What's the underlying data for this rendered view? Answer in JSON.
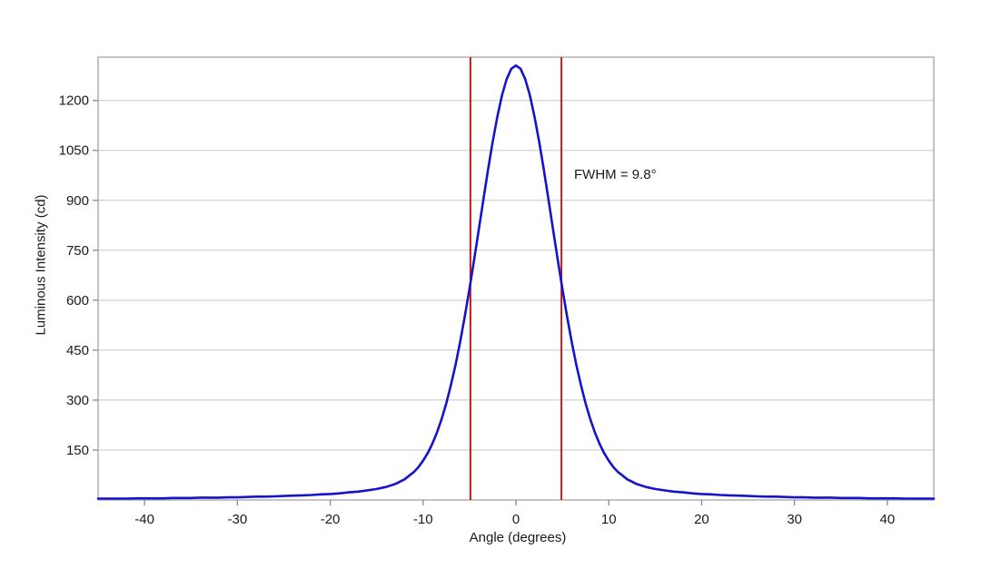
{
  "figure": {
    "background": "#ffffff",
    "frame_color": "#aaaaaa",
    "gridline_color": "#c8c8c8",
    "tick_color": "#888888",
    "text_color": "#1a1a1a"
  },
  "chart_data": {
    "type": "line",
    "title": "",
    "xlabel": "Angle (degrees)",
    "ylabel": "Luminous Intensity (cd)",
    "xlim": [
      -45,
      45
    ],
    "ylim": [
      0,
      1330
    ],
    "x_ticks": [
      -40,
      -30,
      -20,
      -10,
      0,
      10,
      20,
      30,
      40
    ],
    "y_ticks": [
      150,
      300,
      450,
      600,
      750,
      900,
      1050,
      1200
    ],
    "grid": "horizontal",
    "legend": "none",
    "annotations": [
      {
        "text": "FWHM = 9.8°",
        "x": 6.3,
        "y": 975
      }
    ],
    "markers": {
      "type": "vline",
      "x": [
        -4.9,
        4.9
      ],
      "color": "#e00000",
      "meaning": "FWHM half-maximum bounds"
    },
    "fwhm_degrees": 9.8,
    "peak_cd": 1305,
    "series": [
      {
        "name": "Luminous intensity",
        "color": "#1414cc",
        "points": [
          [
            -45,
            4
          ],
          [
            -44,
            4
          ],
          [
            -43,
            4
          ],
          [
            -42,
            4
          ],
          [
            -41,
            5
          ],
          [
            -40,
            5
          ],
          [
            -39,
            5
          ],
          [
            -38,
            5
          ],
          [
            -37,
            6
          ],
          [
            -36,
            6
          ],
          [
            -35,
            6
          ],
          [
            -34,
            7
          ],
          [
            -33,
            7
          ],
          [
            -32,
            7
          ],
          [
            -31,
            8
          ],
          [
            -30,
            8
          ],
          [
            -29,
            9
          ],
          [
            -28,
            10
          ],
          [
            -27,
            10
          ],
          [
            -26,
            11
          ],
          [
            -25,
            12
          ],
          [
            -24,
            13
          ],
          [
            -23,
            14
          ],
          [
            -22,
            15
          ],
          [
            -21,
            17
          ],
          [
            -20,
            18
          ],
          [
            -19,
            20
          ],
          [
            -18,
            23
          ],
          [
            -17,
            25
          ],
          [
            -16,
            29
          ],
          [
            -15,
            33
          ],
          [
            -14,
            39
          ],
          [
            -13,
            48
          ],
          [
            -12,
            62
          ],
          [
            -11,
            84
          ],
          [
            -10.5,
            99
          ],
          [
            -10,
            118
          ],
          [
            -9.5,
            141
          ],
          [
            -9,
            169
          ],
          [
            -8.5,
            203
          ],
          [
            -8,
            243
          ],
          [
            -7.5,
            290
          ],
          [
            -7,
            345
          ],
          [
            -6.5,
            407
          ],
          [
            -6,
            476
          ],
          [
            -5.5,
            553
          ],
          [
            -5,
            635
          ],
          [
            -4.5,
            722
          ],
          [
            -4,
            812
          ],
          [
            -3.5,
            903
          ],
          [
            -3,
            992
          ],
          [
            -2.5,
            1076
          ],
          [
            -2,
            1152
          ],
          [
            -1.5,
            1216
          ],
          [
            -1,
            1264
          ],
          [
            -0.5,
            1295
          ],
          [
            0,
            1305
          ],
          [
            0.5,
            1295
          ],
          [
            1,
            1264
          ],
          [
            1.5,
            1216
          ],
          [
            2,
            1152
          ],
          [
            2.5,
            1076
          ],
          [
            3,
            992
          ],
          [
            3.5,
            903
          ],
          [
            4,
            812
          ],
          [
            4.5,
            722
          ],
          [
            5,
            635
          ],
          [
            5.5,
            553
          ],
          [
            6,
            476
          ],
          [
            6.5,
            407
          ],
          [
            7,
            345
          ],
          [
            7.5,
            290
          ],
          [
            8,
            243
          ],
          [
            8.5,
            203
          ],
          [
            9,
            169
          ],
          [
            9.5,
            141
          ],
          [
            10,
            118
          ],
          [
            10.5,
            99
          ],
          [
            11,
            84
          ],
          [
            12,
            62
          ],
          [
            13,
            48
          ],
          [
            14,
            39
          ],
          [
            15,
            33
          ],
          [
            16,
            29
          ],
          [
            17,
            25
          ],
          [
            18,
            23
          ],
          [
            19,
            20
          ],
          [
            20,
            18
          ],
          [
            21,
            17
          ],
          [
            22,
            15
          ],
          [
            23,
            14
          ],
          [
            24,
            13
          ],
          [
            25,
            12
          ],
          [
            26,
            11
          ],
          [
            27,
            10
          ],
          [
            28,
            10
          ],
          [
            29,
            9
          ],
          [
            30,
            8
          ],
          [
            31,
            8
          ],
          [
            32,
            7
          ],
          [
            33,
            7
          ],
          [
            34,
            7
          ],
          [
            35,
            6
          ],
          [
            36,
            6
          ],
          [
            37,
            6
          ],
          [
            38,
            5
          ],
          [
            39,
            5
          ],
          [
            40,
            5
          ],
          [
            41,
            5
          ],
          [
            42,
            4
          ],
          [
            43,
            4
          ],
          [
            44,
            4
          ],
          [
            45,
            4
          ]
        ]
      }
    ]
  }
}
